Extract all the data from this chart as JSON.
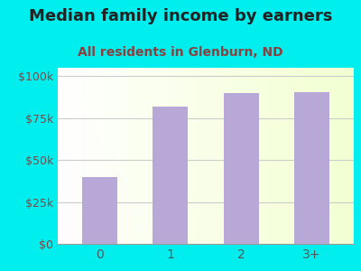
{
  "title": "Median family income by earners",
  "subtitle": "All residents in Glenburn, ND",
  "categories": [
    "0",
    "1",
    "2",
    "3+"
  ],
  "values": [
    40000,
    82000,
    90000,
    90500
  ],
  "bar_color": "#b8a8d8",
  "background_outer": "#00EEEE",
  "title_color": "#222222",
  "subtitle_color": "#8B4040",
  "ylabel_color": "#8B4040",
  "xlabel_color": "#555555",
  "yticks": [
    0,
    25000,
    50000,
    75000,
    100000
  ],
  "ytick_labels": [
    "$0",
    "$25k",
    "$50k",
    "$75k",
    "$100k"
  ],
  "ylim": [
    0,
    105000
  ],
  "title_fontsize": 13,
  "subtitle_fontsize": 10,
  "grid_color": "#cccccc"
}
